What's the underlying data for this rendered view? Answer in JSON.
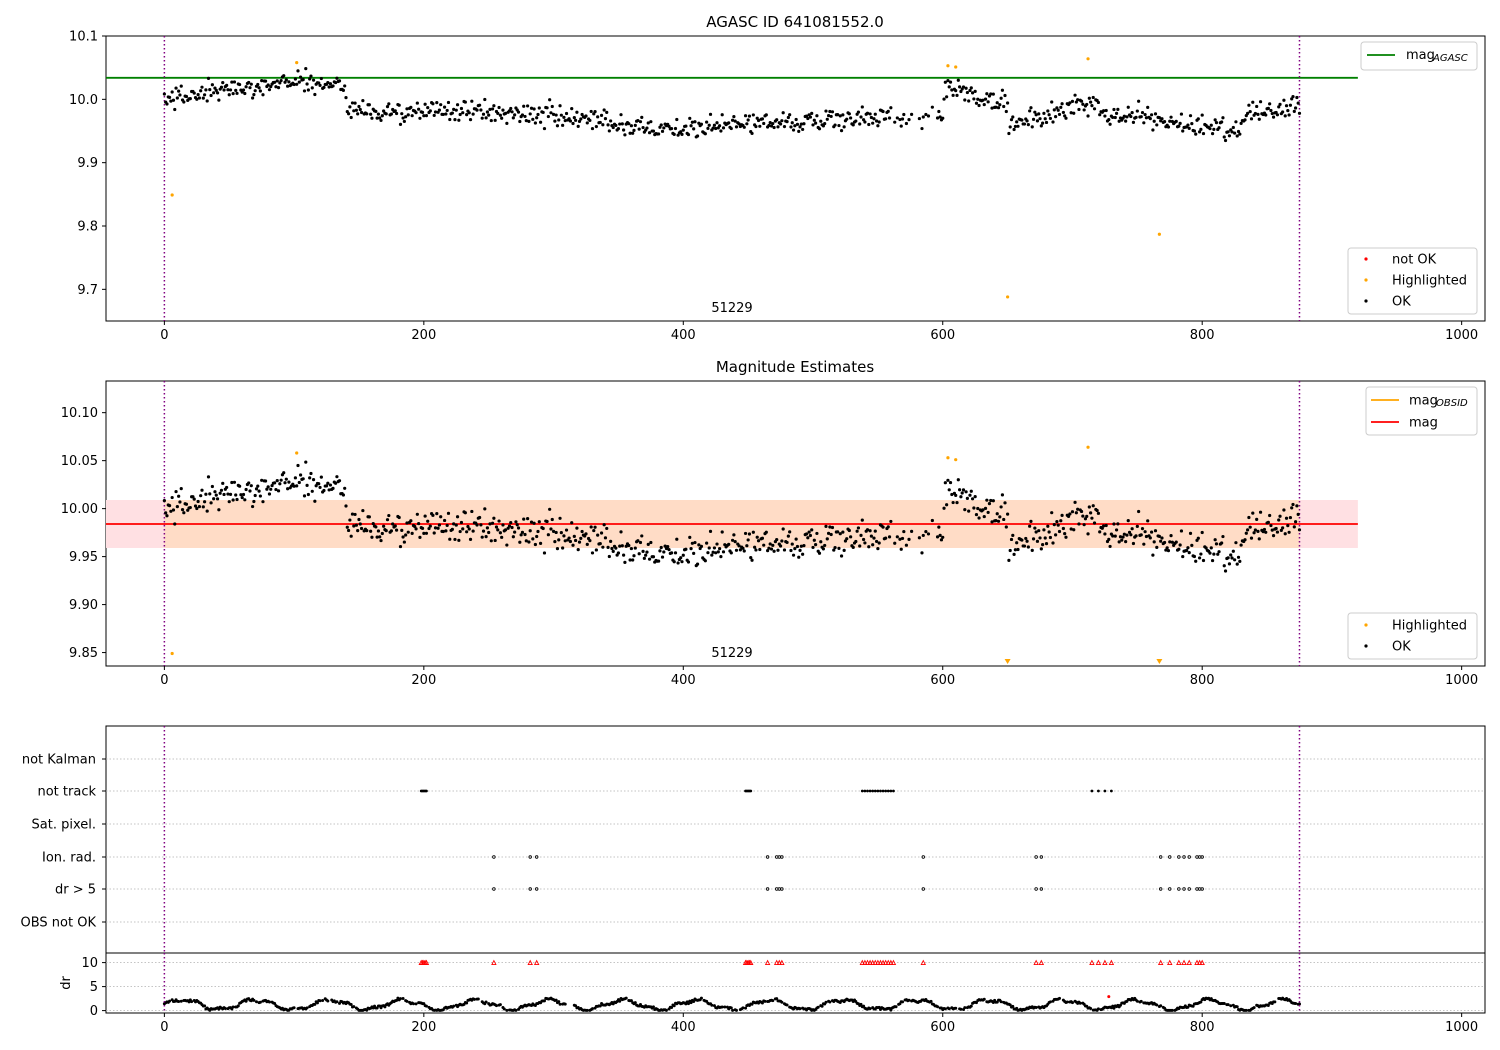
{
  "chart_data": [
    {
      "type": "scatter",
      "title": "AGASC ID 641081552.0",
      "xlim": [
        -45,
        1018
      ],
      "ylim": [
        9.65,
        10.1
      ],
      "xticks": [
        "0",
        "200",
        "400",
        "600",
        "800",
        "1000"
      ],
      "yticks": [
        "9.7",
        "9.8",
        "9.9",
        "10.0",
        "10.1"
      ],
      "annotation": "51229",
      "vlines": [
        0,
        875
      ],
      "hline": {
        "y": 10.034,
        "x_end": 920,
        "color": "#008000"
      },
      "legend_lines": [
        {
          "label": "mag",
          "sub": "AGASC",
          "color": "#008000"
        }
      ],
      "legend_points": [
        {
          "label": "not OK",
          "color": "#ff0000"
        },
        {
          "label": "Highlighted",
          "color": "#ffa500"
        },
        {
          "label": "OK",
          "color": "#000000"
        }
      ],
      "ok_series": [
        {
          "x": [
            0,
            100
          ],
          "y": [
            10.0,
            10.03
          ]
        },
        {
          "x": [
            100,
            140
          ],
          "y": [
            10.03,
            10.02
          ]
        },
        {
          "x": [
            140,
            200
          ],
          "y": [
            9.985,
            9.975
          ]
        },
        {
          "x": [
            200,
            300
          ],
          "y": [
            9.985,
            9.975
          ]
        },
        {
          "x": [
            300,
            420
          ],
          "y": [
            9.97,
            9.95
          ]
        },
        {
          "x": [
            420,
            600
          ],
          "y": [
            9.96,
            9.975
          ]
        },
        {
          "x": [
            600,
            650
          ],
          "y": [
            10.02,
            9.995
          ]
        },
        {
          "x": [
            650,
            720
          ],
          "y": [
            9.955,
            10.0
          ]
        },
        {
          "x": [
            720,
            760
          ],
          "y": [
            9.98,
            9.975
          ]
        },
        {
          "x": [
            760,
            830
          ],
          "y": [
            9.965,
            9.955
          ]
        },
        {
          "x": [
            830,
            875
          ],
          "y": [
            9.975,
            9.99
          ]
        }
      ],
      "highlighted": [
        {
          "x": 6,
          "y": 9.849
        },
        {
          "x": 102,
          "y": 10.058
        },
        {
          "x": 604,
          "y": 10.053
        },
        {
          "x": 610,
          "y": 10.051
        },
        {
          "x": 650,
          "y": 9.688
        },
        {
          "x": 712,
          "y": 10.064
        },
        {
          "x": 767,
          "y": 9.787
        }
      ]
    },
    {
      "type": "scatter",
      "title": "Magnitude Estimates",
      "xlim": [
        -45,
        1018
      ],
      "ylim": [
        9.836,
        10.133
      ],
      "xticks": [
        "0",
        "200",
        "400",
        "600",
        "800",
        "1000"
      ],
      "yticks": [
        "9.85",
        "9.90",
        "9.95",
        "10.00",
        "10.05",
        "10.10"
      ],
      "annotation": "51229",
      "vlines": [
        0,
        875
      ],
      "mag": 9.984,
      "band": [
        9.959,
        10.009
      ],
      "legend_lines": [
        {
          "label": "mag",
          "sub": "OBSID",
          "color": "#ffa500"
        },
        {
          "label": "mag",
          "sub": "",
          "color": "#ff0000"
        }
      ],
      "legend_points": [
        {
          "label": "Highlighted",
          "color": "#ffa500"
        },
        {
          "label": "OK",
          "color": "#000000"
        }
      ],
      "highlighted": [
        {
          "x": 6,
          "y": 9.849
        },
        {
          "x": 102,
          "y": 10.058
        },
        {
          "x": 604,
          "y": 10.053
        },
        {
          "x": 610,
          "y": 10.051
        },
        {
          "x": 712,
          "y": 10.064
        }
      ],
      "below_range": [
        650,
        767
      ]
    },
    {
      "type": "scatter",
      "xlim": [
        -45,
        1018
      ],
      "xticks": [
        "0",
        "200",
        "400",
        "600",
        "800",
        "1000"
      ],
      "vlines": [
        0,
        875
      ],
      "flag_labels": [
        "not Kalman",
        "not track",
        "Sat. pixel.",
        "Ion. rad.",
        "dr > 5",
        "OBS not OK"
      ],
      "flags": {
        "not track": [
          198,
          199,
          200,
          201,
          202,
          448,
          449,
          450,
          451,
          452,
          538,
          540,
          542,
          544,
          546,
          548,
          550,
          552,
          554,
          556,
          558,
          560,
          562,
          715,
          720,
          725,
          730
        ],
        "Ion. rad.": [
          254,
          282,
          287,
          465,
          472,
          474,
          476,
          585,
          672,
          676,
          768,
          775,
          782,
          786,
          790,
          796,
          798,
          800
        ],
        "dr > 5": [
          254,
          282,
          287,
          465,
          472,
          474,
          476,
          585,
          672,
          676,
          768,
          775,
          782,
          786,
          790,
          796,
          798,
          800
        ]
      },
      "dr": {
        "ylabel": "dr",
        "ylim": [
          -0.5,
          12
        ],
        "yticks": [
          "0",
          "5",
          "10"
        ],
        "red_markers": [
          198,
          199,
          200,
          201,
          202,
          254,
          282,
          287,
          448,
          449,
          450,
          451,
          452,
          465,
          472,
          474,
          476,
          538,
          540,
          542,
          544,
          546,
          548,
          550,
          552,
          554,
          556,
          558,
          560,
          562,
          585,
          672,
          676,
          715,
          720,
          725,
          730,
          768,
          775,
          782,
          786,
          790,
          796,
          798,
          800
        ],
        "red_marker_y": 10,
        "outlier": {
          "x": 728,
          "y": 2.9
        }
      }
    }
  ]
}
